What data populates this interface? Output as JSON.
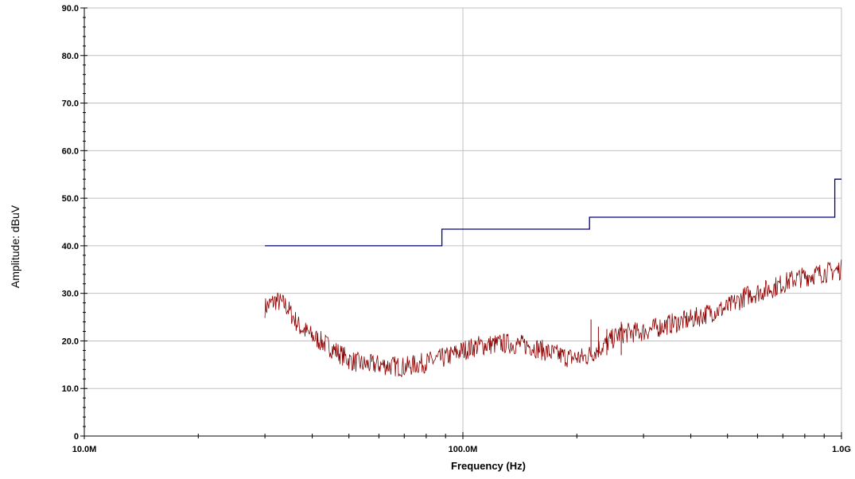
{
  "chart_data": {
    "type": "line",
    "xlabel": "Frequency (Hz)",
    "ylabel": "Amplitude: dBuV",
    "x_scale": "log",
    "xlim": [
      10000000,
      1000000000
    ],
    "ylim": [
      0,
      90
    ],
    "grid": true,
    "x_ticks": [
      {
        "value": 10000000,
        "label": "10.0M"
      },
      {
        "value": 100000000,
        "label": "100.0M"
      },
      {
        "value": 1000000000,
        "label": "1.0G"
      }
    ],
    "y_ticks": [
      {
        "value": 0,
        "label": "0"
      },
      {
        "value": 10,
        "label": "10.0"
      },
      {
        "value": 20,
        "label": "20.0"
      },
      {
        "value": 30,
        "label": "30.0"
      },
      {
        "value": 40,
        "label": "40.0"
      },
      {
        "value": 50,
        "label": "50.0"
      },
      {
        "value": 60,
        "label": "60.0"
      },
      {
        "value": 70,
        "label": "70.0"
      },
      {
        "value": 80,
        "label": "80.0"
      },
      {
        "value": 90,
        "label": "90.0"
      }
    ],
    "series": [
      {
        "color": "#000080",
        "style": "step",
        "points": [
          [
            30000000,
            40.0
          ],
          [
            88000000,
            40.0
          ],
          [
            88000000,
            43.5
          ],
          [
            216000000,
            43.5
          ],
          [
            216000000,
            46.0
          ],
          [
            960000000,
            46.0
          ],
          [
            960000000,
            54.0
          ],
          [
            1000000000,
            54.0
          ]
        ]
      },
      {
        "color": "#8b0000",
        "style": "noisy",
        "points": [
          [
            30000000,
            27.0
          ],
          [
            32000000,
            28.5
          ],
          [
            34000000,
            27.5
          ],
          [
            37000000,
            23.0
          ],
          [
            40000000,
            21.0
          ],
          [
            45000000,
            18.5
          ],
          [
            50000000,
            16.0
          ],
          [
            55000000,
            15.0
          ],
          [
            60000000,
            15.0
          ],
          [
            70000000,
            14.5
          ],
          [
            80000000,
            15.5
          ],
          [
            90000000,
            16.5
          ],
          [
            100000000,
            18.0
          ],
          [
            110000000,
            19.0
          ],
          [
            130000000,
            19.5
          ],
          [
            150000000,
            19.0
          ],
          [
            170000000,
            17.5
          ],
          [
            190000000,
            16.5
          ],
          [
            210000000,
            16.5
          ],
          [
            230000000,
            18.5
          ],
          [
            260000000,
            21.5
          ],
          [
            300000000,
            22.0
          ],
          [
            350000000,
            23.5
          ],
          [
            400000000,
            24.5
          ],
          [
            450000000,
            26.0
          ],
          [
            500000000,
            27.0
          ],
          [
            560000000,
            29.5
          ],
          [
            650000000,
            31.0
          ],
          [
            750000000,
            33.0
          ],
          [
            850000000,
            34.0
          ],
          [
            1000000000,
            35.0
          ]
        ]
      }
    ]
  }
}
